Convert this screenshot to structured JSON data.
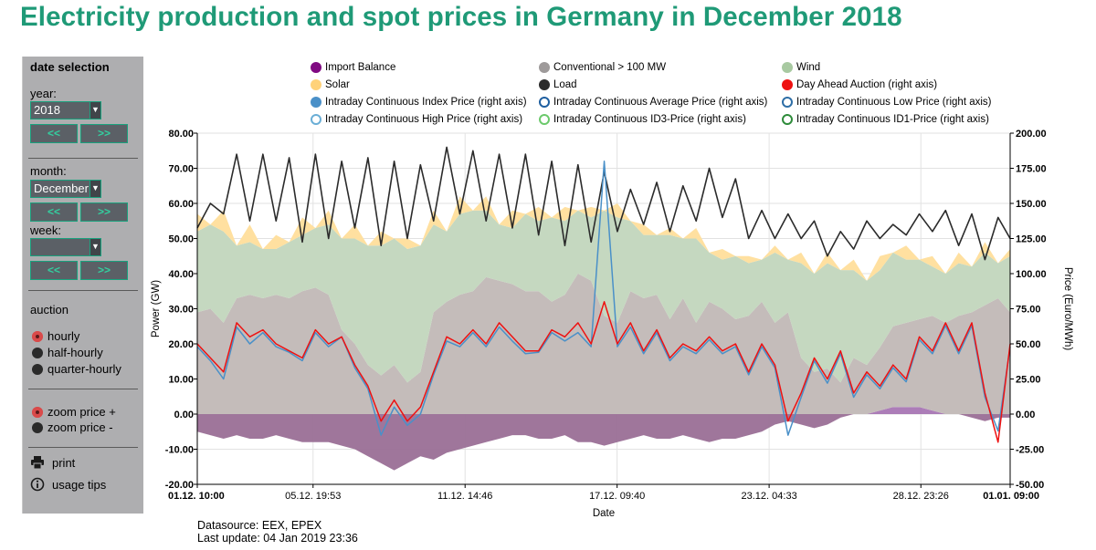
{
  "page": {
    "title": "Electricity production and spot prices in Germany in December 2018"
  },
  "sidebar": {
    "heading": "date selection",
    "year_label": "year:",
    "year_value": "2018",
    "month_label": "month:",
    "month_value": "December",
    "week_label": "week:",
    "week_value": "",
    "prev_label": "<<",
    "next_label": ">>",
    "auction_label": "auction",
    "auction_options": [
      {
        "label": "hourly",
        "checked": true
      },
      {
        "label": "half-hourly",
        "checked": false
      },
      {
        "label": "quarter-hourly",
        "checked": false
      }
    ],
    "zoom_options": [
      {
        "label": "zoom price +",
        "checked": true
      },
      {
        "label": "zoom price -",
        "checked": false
      }
    ],
    "print_label": "print",
    "usage_label": "usage tips",
    "print_icon": "printer-icon",
    "usage_icon": "info-icon"
  },
  "chart_data": {
    "type": "area",
    "title": "Electricity production and spot prices in Germany in December 2018",
    "xlabel": "Date",
    "ylabel": "Power (GW)",
    "y2label": "Price (Euro/MWh)",
    "ylim": [
      -20,
      80
    ],
    "y2lim": [
      -50,
      200
    ],
    "yticks": [
      "80.00",
      "70.00",
      "60.00",
      "50.00",
      "40.00",
      "30.00",
      "20.00",
      "10.00",
      "0.00",
      "-10.00",
      "-20.00"
    ],
    "y2ticks": [
      "200.00",
      "175.00",
      "150.00",
      "125.00",
      "100.00",
      "75.00",
      "50.00",
      "25.00",
      "0.00",
      "-25.00",
      "-50.00"
    ],
    "xticks": [
      "01.12. 10:00",
      "05.12. 19:53",
      "11.12. 14:46",
      "17.12. 09:40",
      "23.12. 04:33",
      "28.12. 23:26",
      "01.01. 09:00"
    ],
    "xtick_pos_days": [
      0,
      4.41,
      10.2,
      15.99,
      21.78,
      27.56,
      30.96
    ],
    "x_days": [
      0,
      0.5,
      1,
      1.5,
      2,
      2.5,
      3,
      3.5,
      4,
      4.5,
      5,
      5.5,
      6,
      6.5,
      7,
      7.5,
      8,
      8.5,
      9,
      9.5,
      10,
      10.5,
      11,
      11.5,
      12,
      12.5,
      13,
      13.5,
      14,
      14.5,
      15,
      15.5,
      16,
      16.5,
      17,
      17.5,
      18,
      18.5,
      19,
      19.5,
      20,
      20.5,
      21,
      21.5,
      22,
      22.5,
      23,
      23.5,
      24,
      24.5,
      25,
      25.5,
      26,
      26.5,
      27,
      27.5,
      28,
      28.5,
      29,
      29.5,
      30,
      30.5,
      30.96
    ],
    "grid": true,
    "legend_position": "top",
    "legend": [
      {
        "name": "Import Balance",
        "color": "#800a82",
        "style": "filled"
      },
      {
        "name": "Conventional > 100 MW",
        "color": "#9e9a9a",
        "style": "filled"
      },
      {
        "name": "Wind",
        "color": "#a8c9a1",
        "style": "filled"
      },
      {
        "name": "Solar",
        "color": "#ffd27a",
        "style": "filled"
      },
      {
        "name": "Load",
        "color": "#2b2b2b",
        "style": "filled"
      },
      {
        "name": "Day Ahead Auction (right axis)",
        "color": "#ee1111",
        "style": "filled"
      },
      {
        "name": "Intraday Continuous Index Price (right axis)",
        "color": "#4a90c8",
        "style": "filled"
      },
      {
        "name": "Intraday Continuous Average Price (right axis)",
        "color": "#1f5fa0",
        "style": "ring"
      },
      {
        "name": "Intraday Continuous Low Price (right axis)",
        "color": "#2e6ea6",
        "style": "ring"
      },
      {
        "name": "Intraday Continuous High Price (right axis)",
        "color": "#6aaed6",
        "style": "ring"
      },
      {
        "name": "Intraday Continuous ID3-Price (right axis)",
        "color": "#6bc96b",
        "style": "ring"
      },
      {
        "name": "Intraday Continuous ID1-Price (right axis)",
        "color": "#2e8b3a",
        "style": "ring"
      }
    ],
    "series": [
      {
        "name": "Import Balance",
        "unit": "GW",
        "values": [
          -5,
          -6,
          -7,
          -6,
          -7,
          -7,
          -6,
          -7,
          -8,
          -8,
          -8,
          -9,
          -10,
          -12,
          -14,
          -16,
          -14,
          -12,
          -13,
          -11,
          -10,
          -9,
          -8,
          -7,
          -6,
          -6,
          -7,
          -7,
          -6,
          -8,
          -8,
          -9,
          -8,
          -7,
          -6,
          -7,
          -7,
          -6,
          -7,
          -8,
          -7,
          -7,
          -6,
          -5,
          -3,
          -2,
          -3,
          -4,
          -3,
          -1,
          0,
          0,
          1,
          2,
          2,
          2,
          1,
          0,
          0,
          -1,
          -2,
          -1,
          -1
        ]
      },
      {
        "name": "Conventional > 100 MW",
        "unit": "GW",
        "values": [
          29,
          30,
          26,
          33,
          34,
          33,
          34,
          33,
          35,
          36,
          34,
          24,
          20,
          14,
          11,
          14,
          9,
          12,
          29,
          32,
          34,
          35,
          39,
          38,
          37,
          35,
          35,
          32,
          34,
          40,
          38,
          28,
          26,
          35,
          33,
          34,
          27,
          33,
          26,
          32,
          30,
          27,
          28,
          32,
          26,
          29,
          16,
          12,
          13,
          9,
          16,
          14,
          18,
          23,
          24,
          25,
          27,
          26,
          28,
          29,
          31,
          33,
          29
        ]
      },
      {
        "name": "Wind",
        "unit": "GW",
        "values": [
          23,
          24,
          26,
          15,
          15,
          14,
          13,
          16,
          16,
          17,
          20,
          26,
          30,
          34,
          37,
          36,
          38,
          36,
          25,
          20,
          23,
          23,
          19,
          16,
          16,
          22,
          20,
          24,
          21,
          18,
          18,
          30,
          30,
          20,
          18,
          17,
          24,
          17,
          24,
          14,
          14,
          18,
          15,
          12,
          20,
          15,
          27,
          28,
          30,
          32,
          25,
          24,
          22,
          21,
          18,
          17,
          14,
          14,
          15,
          13,
          15,
          10,
          16
        ]
      },
      {
        "name": "Solar",
        "unit": "GW",
        "values": [
          5,
          0,
          6,
          0,
          5,
          0,
          4,
          0,
          5,
          0,
          4,
          0,
          4,
          0,
          4,
          0,
          3,
          0,
          4,
          0,
          5,
          0,
          4,
          0,
          5,
          0,
          4,
          0,
          4,
          0,
          3,
          0,
          4,
          0,
          3,
          0,
          2,
          0,
          3,
          0,
          3,
          0,
          2,
          0,
          2,
          0,
          3,
          0,
          3,
          0,
          3,
          0,
          4,
          0,
          4,
          0,
          3,
          0,
          3,
          0,
          3,
          0,
          2
        ]
      },
      {
        "name": "Load",
        "unit": "GW",
        "values": [
          53,
          60,
          57,
          74,
          55,
          74,
          55,
          73,
          49,
          74,
          50,
          72,
          53,
          73,
          48,
          72,
          50,
          71,
          55,
          76,
          57,
          75,
          55,
          74,
          53,
          74,
          51,
          72,
          48,
          71,
          49,
          69,
          52,
          64,
          54,
          66,
          52,
          65,
          55,
          70,
          56,
          67,
          50,
          58,
          50,
          57,
          50,
          55,
          45,
          52,
          47,
          55,
          50,
          54,
          51,
          57,
          52,
          58,
          48,
          57,
          44,
          56,
          50
        ]
      },
      {
        "name": "Day Ahead Auction (right axis)",
        "unit": "Euro/MWh",
        "values": [
          50,
          40,
          30,
          65,
          55,
          60,
          50,
          45,
          40,
          60,
          50,
          55,
          35,
          20,
          -5,
          10,
          -5,
          5,
          30,
          55,
          50,
          60,
          50,
          65,
          55,
          45,
          45,
          60,
          55,
          65,
          50,
          80,
          50,
          65,
          45,
          60,
          40,
          50,
          45,
          55,
          45,
          50,
          30,
          50,
          35,
          -5,
          15,
          40,
          25,
          45,
          15,
          30,
          20,
          35,
          25,
          55,
          45,
          65,
          45,
          65,
          15,
          -20,
          50
        ]
      },
      {
        "name": "Intraday Continuous Index Price (right axis)",
        "unit": "Euro/MWh",
        "values": [
          48,
          38,
          25,
          62,
          50,
          58,
          48,
          44,
          38,
          58,
          48,
          55,
          33,
          18,
          -15,
          5,
          -8,
          0,
          28,
          52,
          48,
          58,
          48,
          62,
          52,
          43,
          44,
          58,
          52,
          58,
          48,
          180,
          48,
          62,
          43,
          58,
          38,
          48,
          43,
          53,
          43,
          48,
          28,
          48,
          33,
          -15,
          12,
          38,
          22,
          43,
          12,
          28,
          18,
          33,
          23,
          53,
          43,
          63,
          43,
          63,
          12,
          -12,
          48
        ]
      }
    ]
  },
  "footer": {
    "datasource": "Datasource: EEX, EPEX",
    "lastupdate": "Last update: 04 Jan 2019 23:36"
  }
}
